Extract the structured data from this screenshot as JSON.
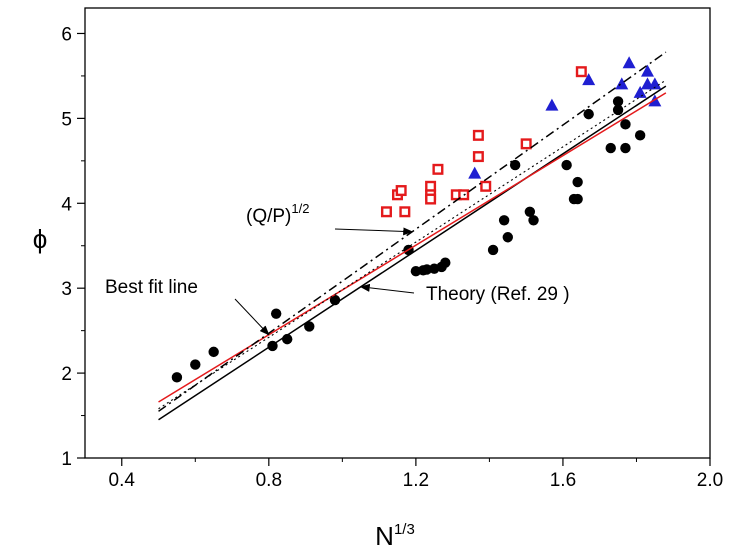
{
  "chart_data": {
    "type": "scatter",
    "xlabel": {
      "base": "N",
      "sup": "1/3"
    },
    "ylabel": "ϕ",
    "xlim": [
      0.3,
      2.0
    ],
    "ylim": [
      1,
      6.3
    ],
    "xticks": [
      0.4,
      0.8,
      1.2,
      1.6,
      2.0
    ],
    "xtick_labels": [
      "0.4",
      "0.8",
      "1.2",
      "1.6",
      "2.0"
    ],
    "yticks": [
      1,
      2,
      3,
      4,
      5,
      6
    ],
    "ytick_labels": [
      "1",
      "2",
      "3",
      "4",
      "5",
      "6"
    ],
    "grid": false,
    "series": [
      {
        "marker": "circle-filled",
        "color": "#000000",
        "points": [
          [
            0.55,
            1.95
          ],
          [
            0.6,
            2.1
          ],
          [
            0.65,
            2.25
          ],
          [
            0.81,
            2.32
          ],
          [
            0.82,
            2.7
          ],
          [
            0.85,
            2.4
          ],
          [
            0.91,
            2.55
          ],
          [
            0.98,
            2.86
          ],
          [
            1.18,
            3.45
          ],
          [
            1.2,
            3.2
          ],
          [
            1.22,
            3.21
          ],
          [
            1.23,
            3.22
          ],
          [
            1.25,
            3.23
          ],
          [
            1.27,
            3.25
          ],
          [
            1.28,
            3.3
          ],
          [
            1.41,
            3.45
          ],
          [
            1.44,
            3.8
          ],
          [
            1.45,
            3.6
          ],
          [
            1.47,
            4.45
          ],
          [
            1.51,
            3.9
          ],
          [
            1.52,
            3.8
          ],
          [
            1.61,
            4.45
          ],
          [
            1.63,
            4.05
          ],
          [
            1.64,
            4.25
          ],
          [
            1.64,
            4.05
          ],
          [
            1.67,
            5.05
          ],
          [
            1.73,
            4.65
          ],
          [
            1.75,
            5.2
          ],
          [
            1.75,
            5.1
          ],
          [
            1.77,
            4.93
          ],
          [
            1.77,
            4.65
          ],
          [
            1.81,
            4.8
          ]
        ]
      },
      {
        "marker": "square-open",
        "color": "#e41a1c",
        "points": [
          [
            1.12,
            3.9
          ],
          [
            1.15,
            4.1
          ],
          [
            1.16,
            4.15
          ],
          [
            1.17,
            3.9
          ],
          [
            1.24,
            4.2
          ],
          [
            1.24,
            4.1
          ],
          [
            1.24,
            4.05
          ],
          [
            1.26,
            4.4
          ],
          [
            1.31,
            4.1
          ],
          [
            1.33,
            4.1
          ],
          [
            1.37,
            4.55
          ],
          [
            1.37,
            4.8
          ],
          [
            1.39,
            4.2
          ],
          [
            1.5,
            4.7
          ],
          [
            1.65,
            5.55
          ]
        ]
      },
      {
        "marker": "triangle-filled",
        "color": "#1f1fd1",
        "points": [
          [
            1.36,
            4.35
          ],
          [
            1.57,
            5.15
          ],
          [
            1.67,
            5.45
          ],
          [
            1.76,
            5.4
          ],
          [
            1.78,
            5.65
          ],
          [
            1.81,
            5.3
          ],
          [
            1.83,
            5.55
          ],
          [
            1.83,
            5.4
          ],
          [
            1.85,
            5.4
          ],
          [
            1.85,
            5.2
          ]
        ]
      }
    ],
    "lines": [
      {
        "name": "theory",
        "style": "solid",
        "color": "#000000",
        "x": [
          0.5,
          1.88
        ],
        "y": [
          1.45,
          5.38
        ]
      },
      {
        "name": "best-fit",
        "style": "solid",
        "color": "#e41a1c",
        "x": [
          0.5,
          1.88
        ],
        "y": [
          1.66,
          5.3
        ]
      },
      {
        "name": "qp",
        "style": "dashdot",
        "color": "#000000",
        "x": [
          0.5,
          1.88
        ],
        "y": [
          1.55,
          5.78
        ]
      },
      {
        "name": "inner-dotted",
        "style": "dotted",
        "color": "#000000",
        "x": [
          0.5,
          1.88
        ],
        "y": [
          1.58,
          5.45
        ]
      }
    ],
    "annotations": [
      {
        "text": "Best fit line",
        "arrow_to_line": "best-fit"
      },
      {
        "text": "Theory (Ref. 29 )",
        "arrow_to_line": "theory"
      },
      {
        "text": {
          "base": "(Q/P)",
          "sup": "1/2"
        },
        "arrow_to_line": "qp"
      }
    ]
  }
}
